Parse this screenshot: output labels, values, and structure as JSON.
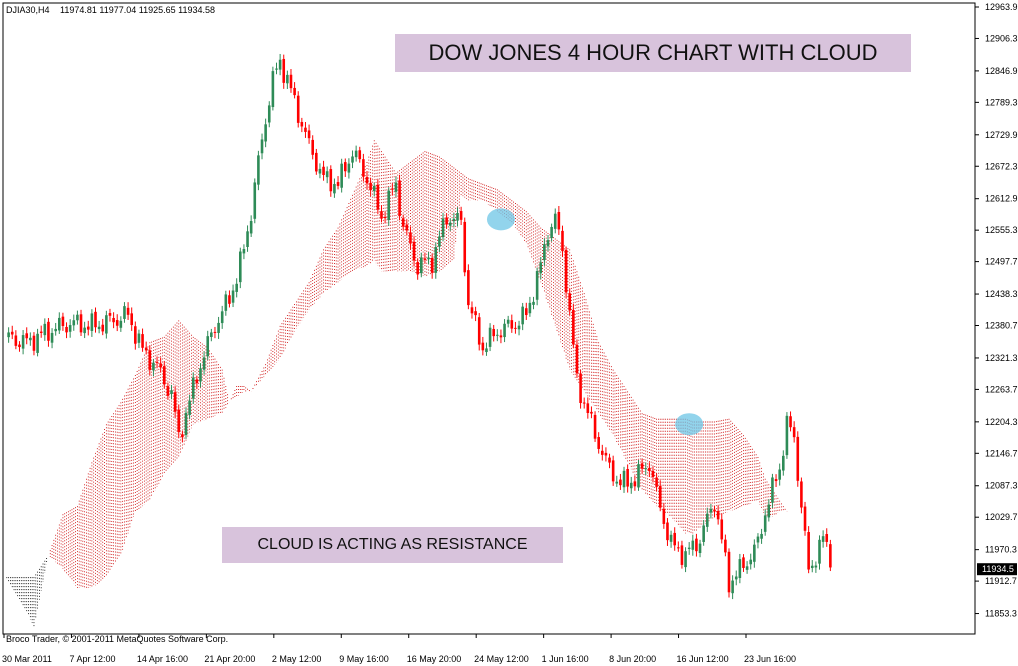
{
  "window": {
    "symbol": "DJIA30,H4",
    "ohlc": "11974.81 11977.04 11925.65 11934.58"
  },
  "footer": {
    "copyright": "Broco Trader, © 2001-2011 MetaQuotes Software Corp."
  },
  "annotations": {
    "title": "DOW JONES 4 HOUR CHART WITH CLOUD",
    "note": "CLOUD IS ACTING AS RESISTANCE"
  },
  "colors": {
    "bull": "#2e8b57",
    "bear": "#ff0000",
    "cloud_bull": "#cc0000",
    "cloud_bear": "#000000",
    "highlight": "#6ec6e6",
    "banner_bg": "#d8c3dc",
    "price_tag_bg": "#000000"
  },
  "chart_data": {
    "type": "candlestick",
    "title": "DOW JONES 4 HOUR CHART WITH CLOUD",
    "ylim": [
      11795.7,
      12963.9
    ],
    "y_ticks": [
      "12963.9",
      "12906.3",
      "12846.9",
      "12789.3",
      "12729.9",
      "12672.3",
      "12612.9",
      "12555.3",
      "12497.7",
      "12438.3",
      "12380.7",
      "12321.3",
      "12263.7",
      "12204.3",
      "12146.7",
      "12087.3",
      "12029.7",
      "11970.3",
      "11912.7",
      "11853.3",
      "11795.7"
    ],
    "x_ticks": [
      "30 Mar 2011",
      "7 Apr 12:00",
      "14 Apr 16:00",
      "21 Apr 20:00",
      "2 May 12:00",
      "9 May 16:00",
      "16 May 20:00",
      "24 May 12:00",
      "1 Jun 16:00",
      "8 Jun 20:00",
      "16 Jun 12:00",
      "23 Jun 16:00"
    ],
    "current_price": "11934.5",
    "bars": 200,
    "close_path": [
      [
        0,
        12360
      ],
      [
        6,
        12350
      ],
      [
        12,
        12370
      ],
      [
        18,
        12385
      ],
      [
        24,
        12380
      ],
      [
        30,
        12390
      ],
      [
        34,
        12400
      ],
      [
        38,
        12335
      ],
      [
        42,
        12305
      ],
      [
        46,
        12255
      ],
      [
        48,
        12175
      ],
      [
        50,
        12220
      ],
      [
        54,
        12310
      ],
      [
        58,
        12380
      ],
      [
        62,
        12430
      ],
      [
        64,
        12470
      ],
      [
        66,
        12520
      ],
      [
        68,
        12590
      ],
      [
        70,
        12680
      ],
      [
        72,
        12760
      ],
      [
        74,
        12830
      ],
      [
        76,
        12865
      ],
      [
        78,
        12830
      ],
      [
        80,
        12790
      ],
      [
        84,
        12710
      ],
      [
        88,
        12650
      ],
      [
        92,
        12640
      ],
      [
        96,
        12700
      ],
      [
        100,
        12650
      ],
      [
        104,
        12580
      ],
      [
        108,
        12640
      ],
      [
        110,
        12560
      ],
      [
        114,
        12490
      ],
      [
        118,
        12500
      ],
      [
        122,
        12580
      ],
      [
        126,
        12570
      ],
      [
        128,
        12420
      ],
      [
        132,
        12340
      ],
      [
        136,
        12370
      ],
      [
        140,
        12380
      ],
      [
        144,
        12400
      ],
      [
        148,
        12490
      ],
      [
        150,
        12555
      ],
      [
        152,
        12575
      ],
      [
        154,
        12520
      ],
      [
        156,
        12400
      ],
      [
        158,
        12280
      ],
      [
        162,
        12200
      ],
      [
        166,
        12130
      ],
      [
        170,
        12090
      ],
      [
        174,
        12100
      ],
      [
        178,
        12130
      ],
      [
        180,
        12070
      ],
      [
        184,
        11980
      ],
      [
        188,
        11960
      ],
      [
        192,
        11990
      ],
      [
        196,
        12060
      ],
      [
        200,
        11910
      ],
      [
        204,
        11940
      ],
      [
        208,
        11980
      ],
      [
        210,
        12040
      ],
      [
        214,
        12120
      ],
      [
        216,
        12200
      ],
      [
        218,
        12175
      ],
      [
        220,
        12050
      ],
      [
        222,
        11930
      ],
      [
        224,
        11960
      ],
      [
        226,
        11990
      ],
      [
        228,
        11960
      ]
    ],
    "cloud": [
      [
        0,
        11920,
        11920
      ],
      [
        4,
        11880,
        11920
      ],
      [
        8,
        11830,
        11920
      ],
      [
        12,
        11960,
        11960
      ],
      [
        16,
        12035,
        11935
      ],
      [
        20,
        12050,
        11900
      ],
      [
        24,
        12130,
        11900
      ],
      [
        28,
        12200,
        11920
      ],
      [
        32,
        12240,
        11960
      ],
      [
        36,
        12290,
        12040
      ],
      [
        40,
        12350,
        12060
      ],
      [
        44,
        12360,
        12110
      ],
      [
        48,
        12390,
        12140
      ],
      [
        52,
        12360,
        12200
      ],
      [
        56,
        12340,
        12210
      ],
      [
        60,
        12300,
        12220
      ],
      [
        62,
        12240,
        12240
      ],
      [
        64,
        12270,
        12250
      ],
      [
        66,
        12270,
        12260
      ],
      [
        68,
        12260,
        12260
      ],
      [
        72,
        12310,
        12290
      ],
      [
        76,
        12380,
        12320
      ],
      [
        80,
        12420,
        12370
      ],
      [
        84,
        12460,
        12410
      ],
      [
        88,
        12520,
        12440
      ],
      [
        92,
        12560,
        12460
      ],
      [
        96,
        12620,
        12480
      ],
      [
        100,
        12680,
        12490
      ],
      [
        102,
        12720,
        12500
      ],
      [
        104,
        12700,
        12480
      ],
      [
        108,
        12660,
        12480
      ],
      [
        112,
        12680,
        12480
      ],
      [
        116,
        12700,
        12470
      ],
      [
        120,
        12690,
        12480
      ],
      [
        124,
        12670,
        12500
      ],
      [
        126,
        12660,
        12620
      ],
      [
        128,
        12650,
        12610
      ],
      [
        132,
        12640,
        12610
      ],
      [
        136,
        12630,
        12590
      ],
      [
        140,
        12610,
        12570
      ],
      [
        144,
        12590,
        12530
      ],
      [
        148,
        12560,
        12460
      ],
      [
        152,
        12540,
        12380
      ],
      [
        156,
        12520,
        12300
      ],
      [
        160,
        12440,
        12260
      ],
      [
        164,
        12350,
        12220
      ],
      [
        168,
        12300,
        12180
      ],
      [
        172,
        12260,
        12130
      ],
      [
        176,
        12220,
        12080
      ],
      [
        180,
        12210,
        12050
      ],
      [
        184,
        12210,
        12030
      ],
      [
        188,
        12210,
        12000
      ],
      [
        190,
        12205,
        12000
      ],
      [
        192,
        12205,
        12010
      ],
      [
        196,
        12205,
        12030
      ],
      [
        200,
        12210,
        12040
      ],
      [
        204,
        12180,
        12050
      ],
      [
        208,
        12140,
        12060
      ],
      [
        210,
        12100,
        12030
      ],
      [
        212,
        12080,
        12030
      ],
      [
        214,
        12060,
        12040
      ],
      [
        216,
        12040,
        12040
      ]
    ],
    "highlights": [
      {
        "bar": 137,
        "price": 12575
      },
      {
        "bar": 189,
        "price": 12200
      }
    ]
  }
}
